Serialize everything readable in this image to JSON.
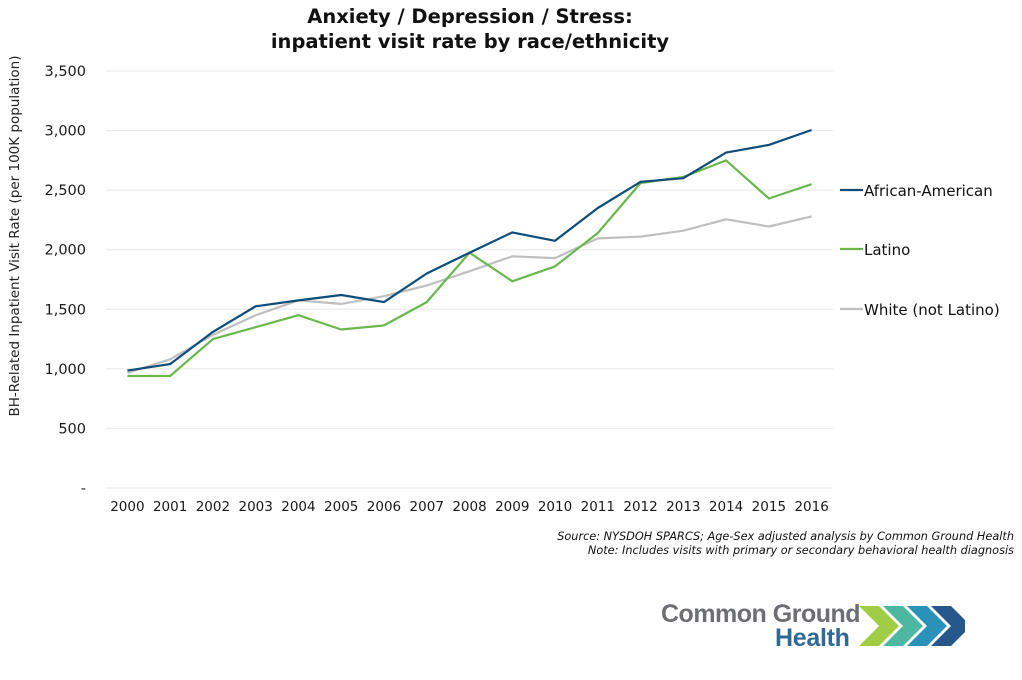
{
  "chart_data": {
    "type": "line",
    "title": [
      "Anxiety / Depression / Stress:",
      "inpatient visit rate by race/ethnicity"
    ],
    "xlabel": "",
    "ylabel": "BH-Related Inpatient Visit Rate (per 100K population)",
    "categories": [
      "2000",
      "2001",
      "2002",
      "2003",
      "2004",
      "2005",
      "2006",
      "2007",
      "2008",
      "2009",
      "2010",
      "2011",
      "2012",
      "2013",
      "2014",
      "2015",
      "2016"
    ],
    "ylim": [
      0,
      3500
    ],
    "yticks": [
      0,
      500,
      1000,
      1500,
      2000,
      2500,
      3000,
      3500
    ],
    "ytick_labels": [
      "-",
      "500",
      "1,000",
      "1,500",
      "2,000",
      "2,500",
      "3,000",
      "3,500"
    ],
    "grid": true,
    "legend_position": "right",
    "series": [
      {
        "name": "African-American",
        "color": "#0e4c7a",
        "values": [
          985,
          1040,
          1310,
          1525,
          1575,
          1620,
          1560,
          1800,
          1975,
          2145,
          2075,
          2350,
          2570,
          2600,
          2815,
          2880,
          3005
        ]
      },
      {
        "name": "Latino",
        "color": "#6ab74e",
        "values": [
          940,
          940,
          1250,
          1350,
          1450,
          1330,
          1365,
          1560,
          1975,
          1735,
          1860,
          2140,
          2560,
          2610,
          2750,
          2430,
          2550
        ]
      },
      {
        "name": "White (not Latino)",
        "color": "#bfbfbf",
        "values": [
          965,
          1080,
          1285,
          1450,
          1575,
          1545,
          1610,
          1700,
          1820,
          1945,
          1930,
          2095,
          2110,
          2160,
          2255,
          2195,
          2280
        ]
      }
    ]
  },
  "footnote": {
    "source": "Source: NYSDOH SPARCS; Age-Sex adjusted analysis by Common Ground Health",
    "note": "Note: Includes visits with primary or secondary behavioral health diagnosis"
  },
  "logo": {
    "line1": "Common Ground",
    "line2": "Health",
    "chevron_colors": [
      "#9cc93b",
      "#45b39d",
      "#1f8cb5",
      "#1a4f86"
    ]
  }
}
